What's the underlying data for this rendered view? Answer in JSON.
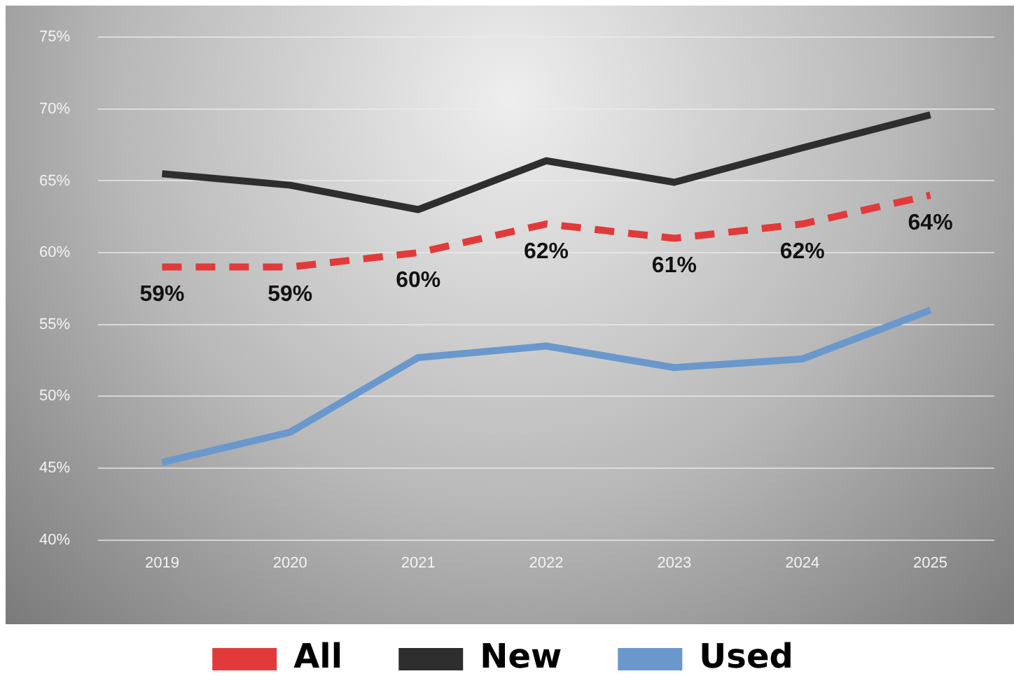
{
  "chart_data": {
    "type": "line",
    "categories": [
      "2019",
      "2020",
      "2021",
      "2022",
      "2023",
      "2024",
      "2025"
    ],
    "series": [
      {
        "name": "All",
        "color": "#e23a3a",
        "line_style": "dashed",
        "values": [
          59,
          59,
          60,
          62,
          61,
          62,
          64
        ],
        "value_labels": [
          "59%",
          "59%",
          "60%",
          "62%",
          "61%",
          "62%",
          "64%"
        ]
      },
      {
        "name": "New",
        "color": "#2e2e2e",
        "line_style": "solid",
        "values": [
          65.5,
          64.7,
          63.0,
          66.4,
          64.9,
          67.3,
          69.6
        ]
      },
      {
        "name": "Used",
        "color": "#6a98cc",
        "line_style": "solid",
        "values": [
          45.4,
          47.5,
          52.7,
          53.5,
          52.0,
          52.6,
          56.0
        ]
      }
    ],
    "ylim": [
      40,
      75
    ],
    "yticks": [
      {
        "value": 40,
        "label": "40%"
      },
      {
        "value": 45,
        "label": "45%"
      },
      {
        "value": 50,
        "label": "50%"
      },
      {
        "value": 55,
        "label": "55%"
      },
      {
        "value": 60,
        "label": "60%"
      },
      {
        "value": 65,
        "label": "65%"
      },
      {
        "value": 70,
        "label": "70%"
      },
      {
        "value": 75,
        "label": "75%"
      }
    ],
    "grid": "y",
    "legend": "bottom",
    "marker": "none"
  }
}
